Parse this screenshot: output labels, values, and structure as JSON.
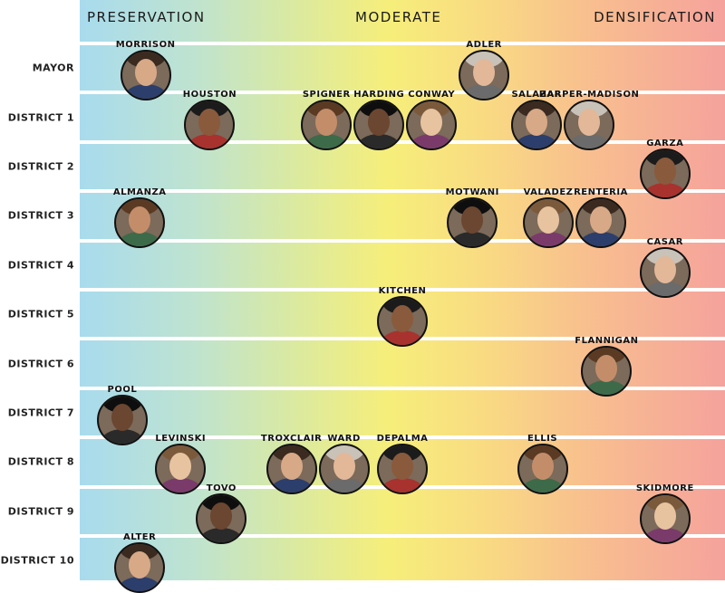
{
  "scale": {
    "left_label": "PRESERVATION",
    "center_label": "MODERATE",
    "right_label": "DENSIFICATION"
  },
  "rows": [
    {
      "label": "MAYOR",
      "members": [
        {
          "name": "MORRISON",
          "position": 0.06
        },
        {
          "name": "ADLER",
          "position": 0.64
        }
      ]
    },
    {
      "label": "DISTRICT 1",
      "members": [
        {
          "name": "HOUSTON",
          "position": 0.17
        },
        {
          "name": "SPIGNER",
          "position": 0.37
        },
        {
          "name": "HARDING",
          "position": 0.46
        },
        {
          "name": "CONWAY",
          "position": 0.55
        },
        {
          "name": "SALAZAR",
          "position": 0.73
        },
        {
          "name": "HARPER-MADISON",
          "position": 0.82
        }
      ]
    },
    {
      "label": "DISTRICT 2",
      "members": [
        {
          "name": "GARZA",
          "position": 0.95
        }
      ]
    },
    {
      "label": "DISTRICT 3",
      "members": [
        {
          "name": "ALMANZA",
          "position": 0.05
        },
        {
          "name": "MOTWANI",
          "position": 0.62
        },
        {
          "name": "VALADEZ",
          "position": 0.75
        },
        {
          "name": "RENTERIA",
          "position": 0.84
        }
      ]
    },
    {
      "label": "DISTRICT 4",
      "members": [
        {
          "name": "CASAR",
          "position": 0.95
        }
      ]
    },
    {
      "label": "DISTRICT 5",
      "members": [
        {
          "name": "KITCHEN",
          "position": 0.5
        }
      ]
    },
    {
      "label": "DISTRICT 6",
      "members": [
        {
          "name": "FLANNIGAN",
          "position": 0.85
        }
      ]
    },
    {
      "label": "DISTRICT 7",
      "members": [
        {
          "name": "POOL",
          "position": 0.02
        }
      ]
    },
    {
      "label": "DISTRICT 8",
      "members": [
        {
          "name": "LEVINSKI",
          "position": 0.12
        },
        {
          "name": "TROXCLAIR",
          "position": 0.31
        },
        {
          "name": "WARD",
          "position": 0.4
        },
        {
          "name": "DEPALMA",
          "position": 0.5
        },
        {
          "name": "ELLIS",
          "position": 0.74
        }
      ]
    },
    {
      "label": "DISTRICT 9",
      "members": [
        {
          "name": "TOVO",
          "position": 0.19
        },
        {
          "name": "SKIDMORE",
          "position": 0.95
        }
      ]
    },
    {
      "label": "DISTRICT 10",
      "members": [
        {
          "name": "ALTER",
          "position": 0.05
        }
      ]
    }
  ]
}
